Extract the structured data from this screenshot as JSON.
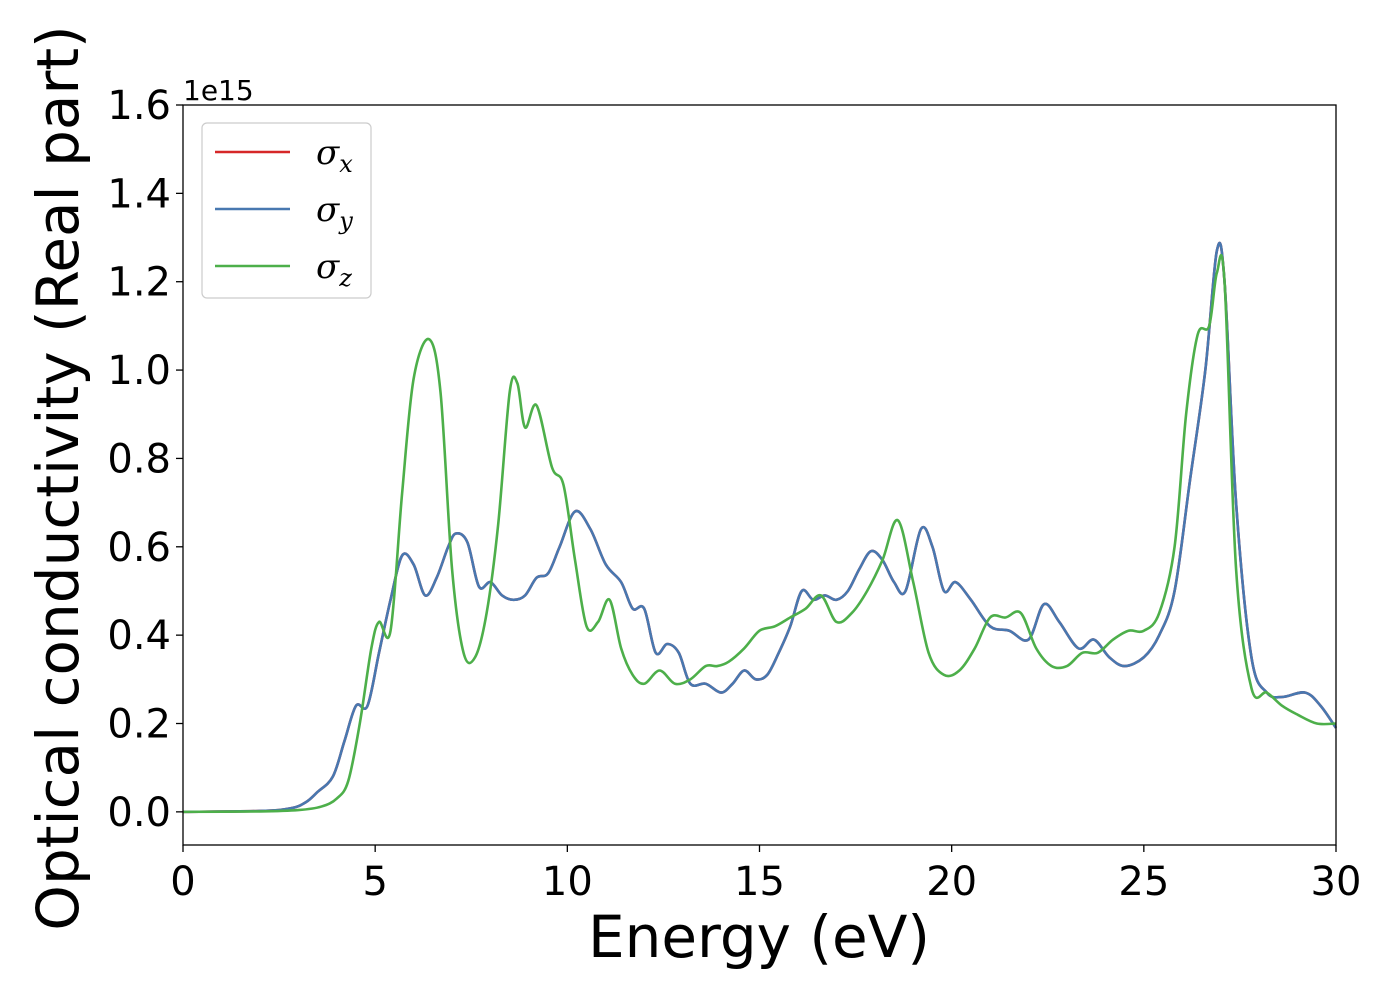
{
  "chart_data": {
    "type": "line",
    "title": "",
    "xlabel": "Energy (eV)",
    "ylabel": "Optical conductivity (Real part)",
    "y_offset_label": "1e15",
    "xlim": [
      0,
      30
    ],
    "ylim": [
      -0.075,
      1.6
    ],
    "xticks": [
      0,
      5,
      10,
      15,
      20,
      25,
      30
    ],
    "yticks": [
      0.0,
      0.2,
      0.4,
      0.6,
      0.8,
      1.0,
      1.2,
      1.4,
      1.6
    ],
    "xtick_labels": [
      "0",
      "5",
      "10",
      "15",
      "20",
      "25",
      "30"
    ],
    "ytick_labels": [
      "0.0",
      "0.2",
      "0.4",
      "0.6",
      "0.8",
      "1.0",
      "1.2",
      "1.4",
      "1.6"
    ],
    "grid": false,
    "legend_position": "top-left",
    "series": [
      {
        "name": "σx",
        "legend_base": "σ",
        "legend_sub": "x",
        "color": "#d62728",
        "x": [
          0,
          2,
          2.8,
          3.2,
          3.5,
          3.9,
          4.2,
          4.5,
          4.8,
          5.1,
          5.4,
          5.7,
          6.0,
          6.3,
          6.6,
          6.9,
          7.1,
          7.4,
          7.7,
          8.0,
          8.3,
          8.6,
          8.9,
          9.2,
          9.5,
          9.8,
          10.2,
          10.6,
          11.0,
          11.4,
          11.7,
          12.0,
          12.3,
          12.6,
          12.9,
          13.2,
          13.6,
          14.0,
          14.3,
          14.6,
          14.9,
          15.2,
          15.5,
          15.8,
          16.1,
          16.4,
          16.7,
          17.0,
          17.3,
          17.6,
          17.9,
          18.2,
          18.5,
          18.8,
          19.2,
          19.5,
          19.8,
          20.1,
          20.5,
          21.0,
          21.5,
          22.0,
          22.4,
          22.8,
          23.3,
          23.7,
          24.1,
          24.5,
          25.0,
          25.4,
          25.8,
          26.2,
          26.6,
          26.9,
          27.1,
          27.4,
          27.8,
          28.2,
          28.6,
          29.2,
          29.6,
          30.0
        ],
        "y": [
          0,
          0.002,
          0.008,
          0.022,
          0.045,
          0.08,
          0.16,
          0.24,
          0.24,
          0.36,
          0.48,
          0.58,
          0.56,
          0.49,
          0.53,
          0.6,
          0.63,
          0.61,
          0.51,
          0.52,
          0.49,
          0.48,
          0.49,
          0.53,
          0.54,
          0.6,
          0.68,
          0.64,
          0.56,
          0.52,
          0.46,
          0.46,
          0.36,
          0.38,
          0.36,
          0.29,
          0.29,
          0.27,
          0.29,
          0.32,
          0.3,
          0.31,
          0.36,
          0.42,
          0.5,
          0.48,
          0.49,
          0.48,
          0.5,
          0.55,
          0.59,
          0.57,
          0.52,
          0.5,
          0.64,
          0.6,
          0.5,
          0.52,
          0.48,
          0.42,
          0.41,
          0.39,
          0.47,
          0.43,
          0.37,
          0.39,
          0.35,
          0.33,
          0.35,
          0.4,
          0.5,
          0.75,
          1.0,
          1.27,
          1.2,
          0.7,
          0.35,
          0.27,
          0.26,
          0.27,
          0.24,
          0.19
        ]
      },
      {
        "name": "σy",
        "legend_base": "σ",
        "legend_sub": "y",
        "color": "#4878b0",
        "x": [
          0,
          2,
          2.8,
          3.2,
          3.5,
          3.9,
          4.2,
          4.5,
          4.8,
          5.1,
          5.4,
          5.7,
          6.0,
          6.3,
          6.6,
          6.9,
          7.1,
          7.4,
          7.7,
          8.0,
          8.3,
          8.6,
          8.9,
          9.2,
          9.5,
          9.8,
          10.2,
          10.6,
          11.0,
          11.4,
          11.7,
          12.0,
          12.3,
          12.6,
          12.9,
          13.2,
          13.6,
          14.0,
          14.3,
          14.6,
          14.9,
          15.2,
          15.5,
          15.8,
          16.1,
          16.4,
          16.7,
          17.0,
          17.3,
          17.6,
          17.9,
          18.2,
          18.5,
          18.8,
          19.2,
          19.5,
          19.8,
          20.1,
          20.5,
          21.0,
          21.5,
          22.0,
          22.4,
          22.8,
          23.3,
          23.7,
          24.1,
          24.5,
          25.0,
          25.4,
          25.8,
          26.2,
          26.6,
          26.9,
          27.1,
          27.4,
          27.8,
          28.2,
          28.6,
          29.2,
          29.6,
          30.0
        ],
        "y": [
          0,
          0.002,
          0.008,
          0.022,
          0.045,
          0.08,
          0.16,
          0.24,
          0.24,
          0.36,
          0.48,
          0.58,
          0.56,
          0.49,
          0.53,
          0.6,
          0.63,
          0.61,
          0.51,
          0.52,
          0.49,
          0.48,
          0.49,
          0.53,
          0.54,
          0.6,
          0.68,
          0.64,
          0.56,
          0.52,
          0.46,
          0.46,
          0.36,
          0.38,
          0.36,
          0.29,
          0.29,
          0.27,
          0.29,
          0.32,
          0.3,
          0.31,
          0.36,
          0.42,
          0.5,
          0.48,
          0.49,
          0.48,
          0.5,
          0.55,
          0.59,
          0.57,
          0.52,
          0.5,
          0.64,
          0.6,
          0.5,
          0.52,
          0.48,
          0.42,
          0.41,
          0.39,
          0.47,
          0.43,
          0.37,
          0.39,
          0.35,
          0.33,
          0.35,
          0.4,
          0.5,
          0.75,
          1.0,
          1.27,
          1.2,
          0.7,
          0.35,
          0.27,
          0.26,
          0.27,
          0.24,
          0.19
        ]
      },
      {
        "name": "σz",
        "legend_base": "σ",
        "legend_sub": "z",
        "color": "#4daf4a",
        "x": [
          0,
          2,
          3.0,
          3.6,
          4.0,
          4.3,
          4.6,
          4.9,
          5.1,
          5.4,
          5.7,
          6.0,
          6.4,
          6.7,
          7.0,
          7.3,
          7.6,
          7.9,
          8.2,
          8.5,
          8.7,
          8.9,
          9.2,
          9.6,
          9.9,
          10.2,
          10.5,
          10.8,
          11.1,
          11.4,
          11.7,
          12.0,
          12.4,
          12.8,
          13.2,
          13.6,
          13.9,
          14.2,
          14.6,
          15.0,
          15.4,
          15.8,
          16.2,
          16.6,
          17.0,
          17.4,
          17.8,
          18.2,
          18.6,
          19.0,
          19.4,
          19.8,
          20.2,
          20.6,
          21.0,
          21.4,
          21.8,
          22.2,
          22.6,
          23.0,
          23.4,
          23.8,
          24.2,
          24.6,
          25.0,
          25.4,
          25.8,
          26.1,
          26.4,
          26.7,
          26.9,
          27.1,
          27.4,
          27.8,
          28.2,
          28.6,
          29.0,
          29.5,
          30.0
        ],
        "y": [
          0,
          0.001,
          0.004,
          0.012,
          0.03,
          0.07,
          0.2,
          0.37,
          0.43,
          0.41,
          0.72,
          0.98,
          1.07,
          0.95,
          0.55,
          0.36,
          0.35,
          0.45,
          0.65,
          0.95,
          0.97,
          0.87,
          0.92,
          0.78,
          0.74,
          0.57,
          0.42,
          0.43,
          0.48,
          0.37,
          0.31,
          0.29,
          0.32,
          0.29,
          0.3,
          0.33,
          0.33,
          0.34,
          0.37,
          0.41,
          0.42,
          0.44,
          0.46,
          0.49,
          0.43,
          0.45,
          0.5,
          0.57,
          0.66,
          0.52,
          0.36,
          0.31,
          0.32,
          0.37,
          0.44,
          0.44,
          0.45,
          0.37,
          0.33,
          0.33,
          0.36,
          0.36,
          0.39,
          0.41,
          0.41,
          0.45,
          0.6,
          0.9,
          1.08,
          1.1,
          1.22,
          1.2,
          0.55,
          0.28,
          0.27,
          0.24,
          0.22,
          0.2,
          0.2
        ]
      }
    ]
  }
}
